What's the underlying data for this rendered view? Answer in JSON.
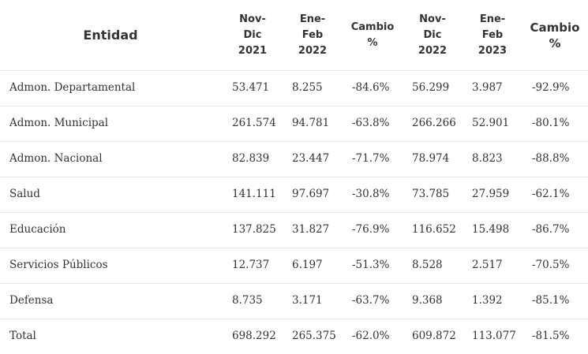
{
  "headers": {
    "entidad": "Entidad",
    "col1": "Nov-\nDic\n2021",
    "col2": "Ene-\nFeb\n2022",
    "col3": "Cambio\n%",
    "col4": "Nov-\nDic\n2022",
    "col5": "Ene-\nFeb\n2023",
    "col6": "Cambio\n%"
  },
  "rows": [
    [
      "Admon. Departamental",
      "53.471",
      "8.255",
      "-84.6%",
      "56.299",
      "3.987",
      "-92.9%"
    ],
    [
      "Admon. Municipal",
      "261.574",
      "94.781",
      "-63.8%",
      "266.266",
      "52.901",
      "-80.1%"
    ],
    [
      "Admon. Nacional",
      "82.839",
      "23.447",
      "-71.7%",
      "78.974",
      "8.823",
      "-88.8%"
    ],
    [
      "Salud",
      "141.111",
      "97.697",
      "-30.8%",
      "73.785",
      "27.959",
      "-62.1%"
    ],
    [
      "Educación",
      "137.825",
      "31.827",
      "-76.9%",
      "116.652",
      "15.498",
      "-86.7%"
    ],
    [
      "Servicios Públicos",
      "12.737",
      "6.197",
      "-51.3%",
      "8.528",
      "2.517",
      "-70.5%"
    ],
    [
      "Defensa",
      "8.735",
      "3.171",
      "-63.7%",
      "9.368",
      "1.392",
      "-85.1%"
    ],
    [
      "Total",
      "698.292",
      "265.375",
      "-62.0%",
      "609.872",
      "113.077",
      "-81.5%"
    ]
  ]
}
